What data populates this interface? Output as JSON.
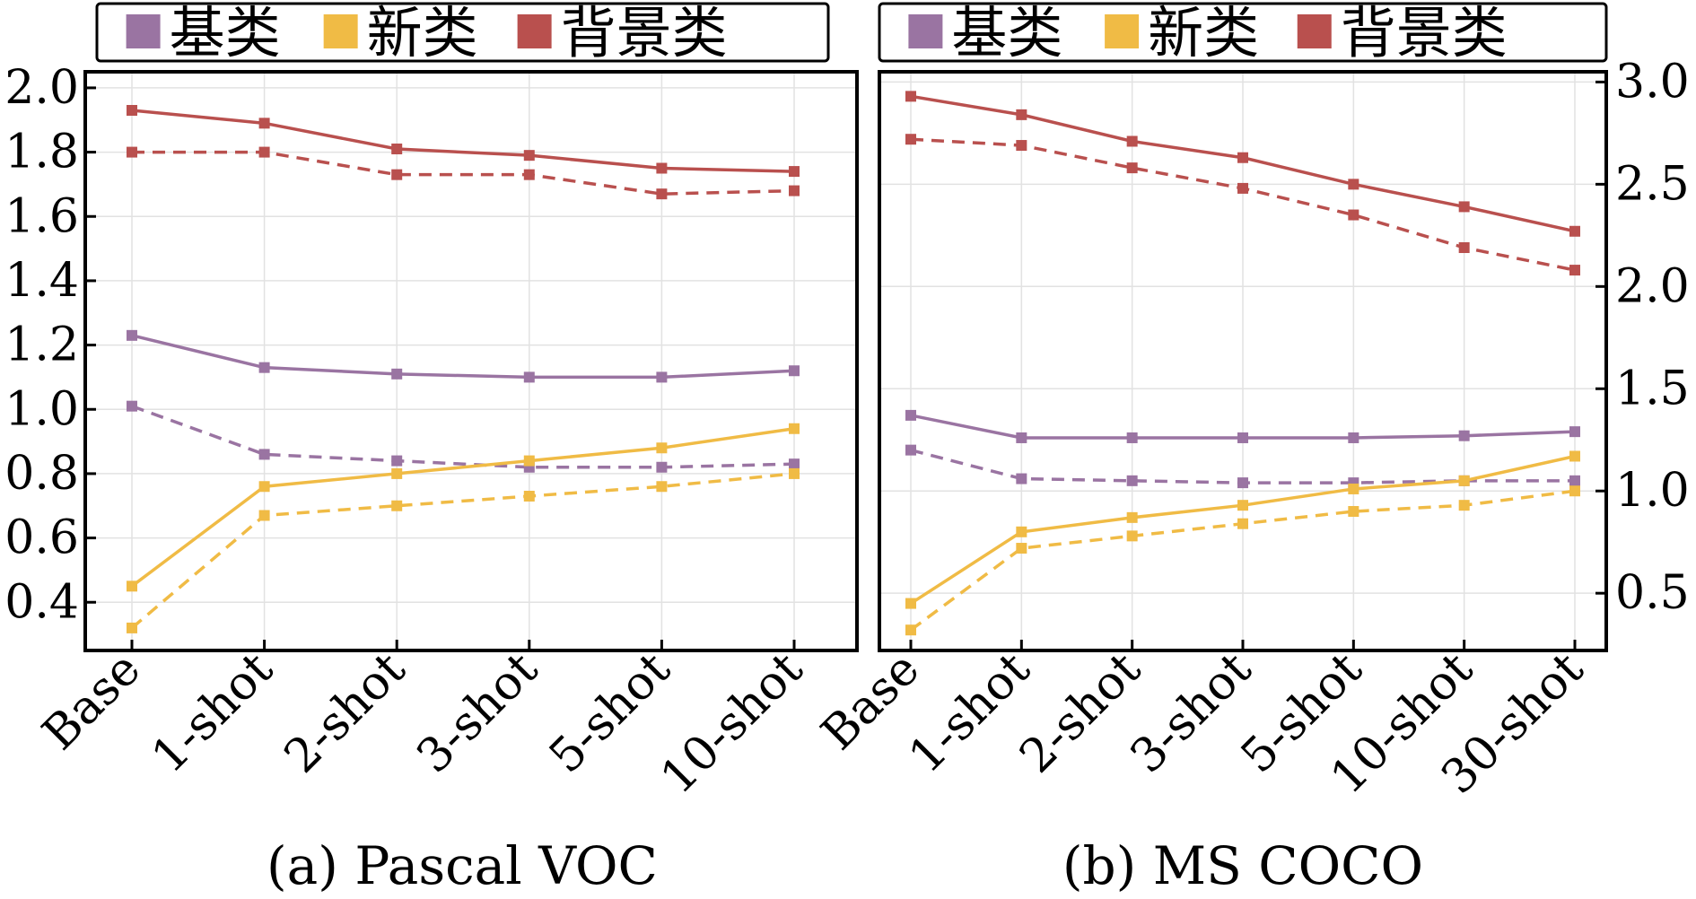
{
  "colors": {
    "base": "#9a74a2",
    "novel": "#f0bb45",
    "background": "#b9504e"
  },
  "legend": {
    "base": "基类",
    "novel": "新类",
    "background": "背景类"
  },
  "chart_data": [
    {
      "type": "line",
      "caption": "(a) Pascal VOC",
      "categories": [
        "Base",
        "1-shot",
        "2-shot",
        "3-shot",
        "5-shot",
        "10-shot"
      ],
      "ylim": [
        0.25,
        2.05
      ],
      "yticks": [
        "0.4",
        "0.6",
        "0.8",
        "1.0",
        "1.2",
        "1.4",
        "1.6",
        "1.8",
        "2.0"
      ],
      "axis_side": "left",
      "series": [
        {
          "name": "背景类",
          "key": "background",
          "style": "solid",
          "values": [
            1.93,
            1.89,
            1.81,
            1.79,
            1.75,
            1.74
          ]
        },
        {
          "name": "背景类",
          "key": "background",
          "style": "dashed",
          "values": [
            1.8,
            1.8,
            1.73,
            1.73,
            1.67,
            1.68
          ]
        },
        {
          "name": "基类",
          "key": "base",
          "style": "solid",
          "values": [
            1.23,
            1.13,
            1.11,
            1.1,
            1.1,
            1.12
          ]
        },
        {
          "name": "基类",
          "key": "base",
          "style": "dashed",
          "values": [
            1.01,
            0.86,
            0.84,
            0.82,
            0.82,
            0.83
          ]
        },
        {
          "name": "新类",
          "key": "novel",
          "style": "solid",
          "values": [
            0.45,
            0.76,
            0.8,
            0.84,
            0.88,
            0.94
          ]
        },
        {
          "name": "新类",
          "key": "novel",
          "style": "dashed",
          "values": [
            0.32,
            0.67,
            0.7,
            0.73,
            0.76,
            0.8
          ]
        }
      ]
    },
    {
      "type": "line",
      "caption": "(b) MS COCO",
      "categories": [
        "Base",
        "1-shot",
        "2-shot",
        "3-shot",
        "5-shot",
        "10-shot",
        "30-shot"
      ],
      "ylim": [
        0.22,
        3.05
      ],
      "yticks": [
        "0.5",
        "1.0",
        "1.5",
        "2.0",
        "2.5",
        "3.0"
      ],
      "axis_side": "right",
      "series": [
        {
          "name": "背景类",
          "key": "background",
          "style": "solid",
          "values": [
            2.93,
            2.84,
            2.71,
            2.63,
            2.5,
            2.39,
            2.27
          ]
        },
        {
          "name": "背景类",
          "key": "background",
          "style": "dashed",
          "values": [
            2.72,
            2.69,
            2.58,
            2.48,
            2.35,
            2.19,
            2.08
          ]
        },
        {
          "name": "基类",
          "key": "base",
          "style": "solid",
          "values": [
            1.37,
            1.26,
            1.26,
            1.26,
            1.26,
            1.27,
            1.29
          ]
        },
        {
          "name": "基类",
          "key": "base",
          "style": "dashed",
          "values": [
            1.2,
            1.06,
            1.05,
            1.04,
            1.04,
            1.05,
            1.05
          ]
        },
        {
          "name": "新类",
          "key": "novel",
          "style": "solid",
          "values": [
            0.45,
            0.8,
            0.87,
            0.93,
            1.01,
            1.05,
            1.17
          ]
        },
        {
          "name": "新类",
          "key": "novel",
          "style": "dashed",
          "values": [
            0.32,
            0.72,
            0.78,
            0.84,
            0.9,
            0.93,
            1.0
          ]
        }
      ]
    }
  ]
}
